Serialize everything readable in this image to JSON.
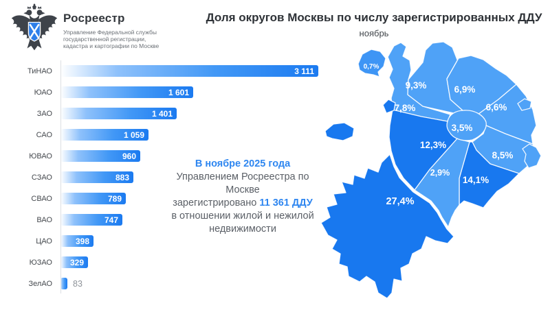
{
  "header": {
    "brand": "Росреестр",
    "brand_sub": [
      "Управление Федеральной службы",
      "государственной регистрации,",
      "кадастра и картографии по Москве"
    ],
    "title": "Доля округов Москвы по числу зарегистрированных ДДУ",
    "subtitle": "ноябрь"
  },
  "summary": {
    "line1": "В ноябре 2025 года",
    "line2": "Управлением Росреестра по Москве",
    "line3_prefix": "зарегистрировано ",
    "line3_highlight": "11 361 ДДУ",
    "line4": "в отношении жилой и нежилой",
    "line5": "недвижимости"
  },
  "chart_data": {
    "type": "bar",
    "orientation": "horizontal",
    "title": "Доля округов Москвы по числу зарегистрированных ДДУ",
    "subtitle": "ноябрь",
    "categories": [
      "ТиНАО",
      "ЮАО",
      "ЗАО",
      "САО",
      "ЮВАО",
      "СЗАО",
      "СВАО",
      "ВАО",
      "ЦАО",
      "ЮЗАО",
      "ЗелАО"
    ],
    "values": [
      3111,
      1601,
      1401,
      1059,
      960,
      883,
      789,
      747,
      398,
      329,
      83
    ],
    "value_labels": [
      "3 111",
      "1 601",
      "1 401",
      "1 059",
      "960",
      "883",
      "789",
      "747",
      "398",
      "329",
      "83"
    ],
    "shares_percent": [
      27.4,
      14.1,
      12.3,
      9.3,
      8.5,
      7.8,
      6.9,
      6.6,
      3.5,
      2.9,
      0.7
    ],
    "total": 11361,
    "max_value": 3111,
    "xlabel": "",
    "ylabel": "",
    "grid": false,
    "legend": false
  },
  "map": {
    "regions": [
      {
        "name": "ТиНАО",
        "share": "27,4%",
        "tone": "dark"
      },
      {
        "name": "ЮАО",
        "share": "14,1%",
        "tone": "dark"
      },
      {
        "name": "ЗАО",
        "share": "12,3%",
        "tone": "dark"
      },
      {
        "name": "САО",
        "share": "9,3%",
        "tone": "light"
      },
      {
        "name": "ЮВАО",
        "share": "8,5%",
        "tone": "light"
      },
      {
        "name": "СЗАО",
        "share": "7,8%",
        "tone": "light"
      },
      {
        "name": "СВАО",
        "share": "6,9%",
        "tone": "light"
      },
      {
        "name": "ВАО",
        "share": "6,6%",
        "tone": "light"
      },
      {
        "name": "ЦАО",
        "share": "3,5%",
        "tone": "light"
      },
      {
        "name": "ЮЗАО",
        "share": "2,9%",
        "tone": "light"
      },
      {
        "name": "ЗелАО",
        "share": "0,7%",
        "tone": "medium"
      }
    ]
  },
  "colors": {
    "map_dark": "#1878EF",
    "map_light": "#4FA2F7",
    "map_medium": "#3E95F5",
    "bar_end": "#1b7af0",
    "accent_text": "#2e86f0",
    "shield_blue": "#2e7fe9"
  }
}
